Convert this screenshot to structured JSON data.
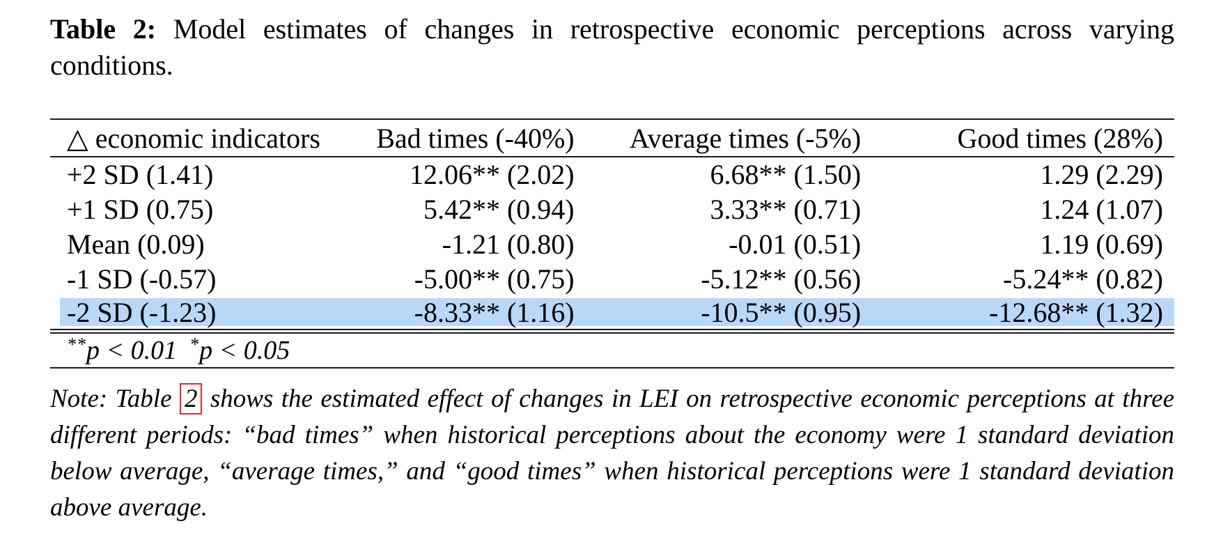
{
  "title": {
    "label": "Table 2:",
    "text": "Model estimates of changes in retrospective economic perceptions across varying conditions."
  },
  "table": {
    "header": [
      "△ economic indicators",
      "Bad times (-40%)",
      "Average times (-5%)",
      "Good times (28%)"
    ],
    "rows": [
      [
        "+2 SD (1.41)",
        "12.06** (2.02)",
        "6.68** (1.50)",
        "1.29 (2.29)"
      ],
      [
        "+1 SD (0.75)",
        "5.42** (0.94)",
        "3.33** (0.71)",
        "1.24 (1.07)"
      ],
      [
        "Mean (0.09)",
        "-1.21 (0.80)",
        "-0.01 (0.51)",
        "1.19 (0.69)"
      ],
      [
        "-1 SD (-0.57)",
        "-5.00** (0.75)",
        "-5.12** (0.56)",
        "-5.24** (0.82)"
      ],
      [
        "-2 SD (-1.23)",
        "-8.33** (1.16)",
        "-10.5** (0.95)",
        "-12.68** (1.32)"
      ]
    ],
    "highlighted_row_index": 4,
    "highlight_color": "#b9d8f8",
    "significance": {
      "stars1": "**",
      "p1": "p < 0.01",
      "stars2": "*",
      "p2": "p < 0.05"
    }
  },
  "note": {
    "lead": "Note:",
    "before_link": "Table",
    "link": "2",
    "after_link": "shows the estimated effect of changes in LEI on retrospective economic perceptions at three different periods: “bad times” when historical perceptions about the economy were 1 standard deviation below average, “average times,” and “good times” when historical perceptions were 1 standard deviation above average."
  }
}
